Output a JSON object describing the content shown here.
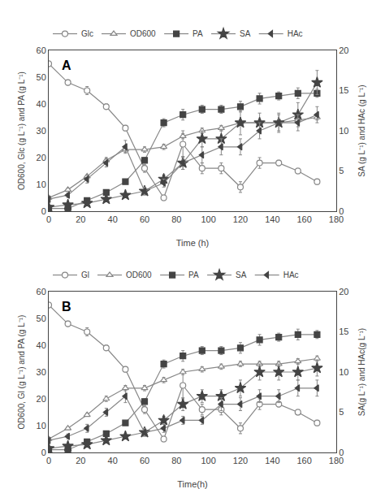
{
  "chart_data": [
    {
      "type": "line",
      "annotation": "A",
      "xlabel": "Time (h)",
      "ylabel": "OD600, Glc (g L⁻¹) and PA (g L⁻¹)",
      "y2label": "SA (g L⁻¹) and HAc (g L⁻¹)",
      "xlim": [
        0,
        180
      ],
      "xticks": [
        0,
        20,
        40,
        60,
        80,
        100,
        120,
        140,
        160,
        180
      ],
      "ylim": [
        0,
        60
      ],
      "yticks": [
        0,
        10,
        20,
        30,
        40,
        50,
        60
      ],
      "y2lim": [
        0,
        20
      ],
      "y2ticks": [
        0,
        5,
        10,
        15,
        20
      ],
      "grid": false,
      "legend": "top",
      "color": "#888888",
      "series": [
        {
          "name": "Glc",
          "marker": "circle-open",
          "x": [
            0,
            12,
            24,
            36,
            48,
            60,
            72,
            84,
            96,
            108,
            120,
            132,
            144,
            156,
            168
          ],
          "values": [
            55,
            48,
            45,
            39,
            31,
            16,
            5,
            25,
            16,
            16,
            9,
            18,
            18,
            15,
            11
          ],
          "error": [
            1,
            1,
            1.5,
            1,
            1,
            1.5,
            1,
            5,
            2,
            2,
            2,
            2,
            1,
            1,
            1
          ]
        },
        {
          "name": "OD600",
          "marker": "triangle-up-open",
          "x": [
            0,
            12,
            24,
            36,
            48,
            60,
            72,
            84,
            96,
            108,
            120,
            132,
            144,
            156,
            168
          ],
          "values": [
            5,
            8,
            13,
            19,
            23,
            23,
            24,
            28,
            30,
            31,
            33,
            33,
            33,
            34,
            35
          ],
          "error": [
            0.5,
            0.5,
            0.5,
            1,
            1,
            1,
            1,
            1,
            1,
            1,
            1,
            1,
            1,
            1,
            1
          ]
        },
        {
          "name": "PA",
          "marker": "square",
          "color": "#444444",
          "x": [
            0,
            12,
            24,
            36,
            48,
            60,
            72,
            84,
            96,
            108,
            120,
            132,
            144,
            156,
            168
          ],
          "values": [
            1,
            1,
            4,
            7,
            11,
            19,
            33,
            36,
            38,
            38,
            39,
            42,
            43,
            44,
            44
          ],
          "error": [
            0.2,
            0.3,
            0.5,
            0.5,
            0.8,
            1,
            1.5,
            2,
            1.5,
            1.5,
            2,
            2,
            1.5,
            2,
            1.5
          ]
        },
        {
          "name": "SA",
          "marker": "star",
          "color": "#444444",
          "axis": "y2",
          "x": [
            0,
            12,
            24,
            36,
            48,
            60,
            72,
            84,
            96,
            108,
            120,
            132,
            144,
            156,
            168
          ],
          "values": [
            0.5,
            0.8,
            1.0,
            1.5,
            2.0,
            2.5,
            4.0,
            6.0,
            9.0,
            9.0,
            11.0,
            11.0,
            11.0,
            12.0,
            16.0
          ],
          "error": [
            0.1,
            0.2,
            0.2,
            0.3,
            0.3,
            0.4,
            0.5,
            0.8,
            1.0,
            1.0,
            1.5,
            1.2,
            1.2,
            1.5,
            1.5
          ]
        },
        {
          "name": "HAc",
          "marker": "triangle-left",
          "color": "#444444",
          "axis": "y2",
          "x": [
            0,
            12,
            24,
            36,
            48,
            60,
            72,
            84,
            96,
            108,
            120,
            132,
            144,
            156,
            168
          ],
          "values": [
            1.5,
            2.0,
            4.0,
            6.0,
            8.0,
            2.5,
            3.5,
            6.0,
            7.0,
            8.0,
            8.0,
            10.0,
            11.0,
            11.0,
            12.0
          ],
          "error": [
            0.2,
            0.3,
            0.5,
            0.5,
            0.8,
            0.5,
            0.5,
            0.8,
            1.0,
            1.0,
            1.0,
            1.0,
            1.0,
            1.0,
            1.0
          ]
        }
      ]
    },
    {
      "type": "line",
      "annotation": "B",
      "xlabel": "Time(h)",
      "ylabel": "OD600, Gl (g L⁻¹) and PA (g L⁻¹)",
      "y2label": "SA(g L⁻¹) and HAc(g L⁻¹)",
      "xlim": [
        0,
        180
      ],
      "xticks": [
        0,
        20,
        40,
        60,
        80,
        100,
        120,
        140,
        160,
        180
      ],
      "ylim": [
        0,
        60
      ],
      "yticks": [
        0,
        10,
        20,
        30,
        40,
        50,
        60
      ],
      "y2lim": [
        0,
        20
      ],
      "y2ticks": [
        0,
        5,
        10,
        15,
        20
      ],
      "grid": false,
      "legend": "top",
      "color": "#888888",
      "series": [
        {
          "name": "Gl",
          "marker": "circle-open",
          "x": [
            0,
            12,
            24,
            36,
            48,
            60,
            72,
            84,
            96,
            108,
            120,
            132,
            144,
            156,
            168
          ],
          "values": [
            55,
            48,
            45,
            39,
            31,
            16,
            5,
            25,
            16,
            16,
            9,
            18,
            18,
            15,
            11
          ],
          "error": [
            1,
            1,
            1.5,
            1,
            1,
            1.5,
            1,
            5,
            2,
            2,
            2,
            2,
            1,
            1,
            1
          ]
        },
        {
          "name": "OD600",
          "marker": "triangle-up-open",
          "x": [
            0,
            12,
            24,
            36,
            48,
            60,
            72,
            84,
            96,
            108,
            120,
            132,
            144,
            156,
            168
          ],
          "values": [
            5,
            9,
            14,
            20,
            24,
            24,
            27,
            30,
            31,
            32,
            33,
            33,
            33,
            34,
            35
          ],
          "error": [
            0.5,
            0.5,
            0.5,
            1,
            1,
            1,
            1,
            1,
            1,
            1,
            1,
            1,
            1,
            1,
            1
          ]
        },
        {
          "name": "PA",
          "marker": "square",
          "color": "#444444",
          "x": [
            0,
            12,
            24,
            36,
            48,
            60,
            72,
            84,
            96,
            108,
            120,
            132,
            144,
            156,
            168
          ],
          "values": [
            1,
            1,
            4,
            7,
            11,
            19,
            33,
            36,
            38,
            38,
            39,
            42,
            43,
            44,
            44
          ],
          "error": [
            0.2,
            0.3,
            0.5,
            0.5,
            0.8,
            1,
            1.5,
            2,
            1.5,
            1.5,
            2,
            2,
            1.5,
            2,
            1.5
          ]
        },
        {
          "name": "SA",
          "marker": "star",
          "color": "#444444",
          "axis": "y2",
          "x": [
            0,
            12,
            24,
            36,
            48,
            60,
            72,
            84,
            96,
            108,
            120,
            132,
            144,
            156,
            168
          ],
          "values": [
            0.5,
            0.8,
            1.0,
            1.5,
            2.0,
            2.5,
            4.0,
            6.0,
            7.0,
            7.0,
            8.0,
            10.0,
            10.0,
            10.0,
            10.5
          ],
          "error": [
            0.1,
            0.2,
            0.2,
            0.3,
            0.3,
            0.4,
            0.5,
            0.8,
            0.8,
            0.8,
            1.0,
            1.0,
            1.0,
            1.0,
            1.0
          ]
        },
        {
          "name": "HAc",
          "marker": "triangle-left",
          "color": "#444444",
          "axis": "y2",
          "x": [
            0,
            12,
            24,
            36,
            48,
            60,
            72,
            84,
            96,
            108,
            120,
            132,
            144,
            156,
            168
          ],
          "values": [
            1.5,
            2.0,
            3.0,
            5.0,
            7.0,
            2.5,
            3.0,
            4.0,
            4.0,
            6.0,
            6.0,
            7.0,
            7.0,
            8.0,
            8.0
          ],
          "error": [
            0.2,
            0.3,
            0.5,
            0.5,
            0.8,
            0.5,
            0.5,
            0.5,
            0.5,
            0.8,
            0.8,
            0.8,
            0.8,
            1.0,
            1.0
          ]
        }
      ]
    }
  ]
}
